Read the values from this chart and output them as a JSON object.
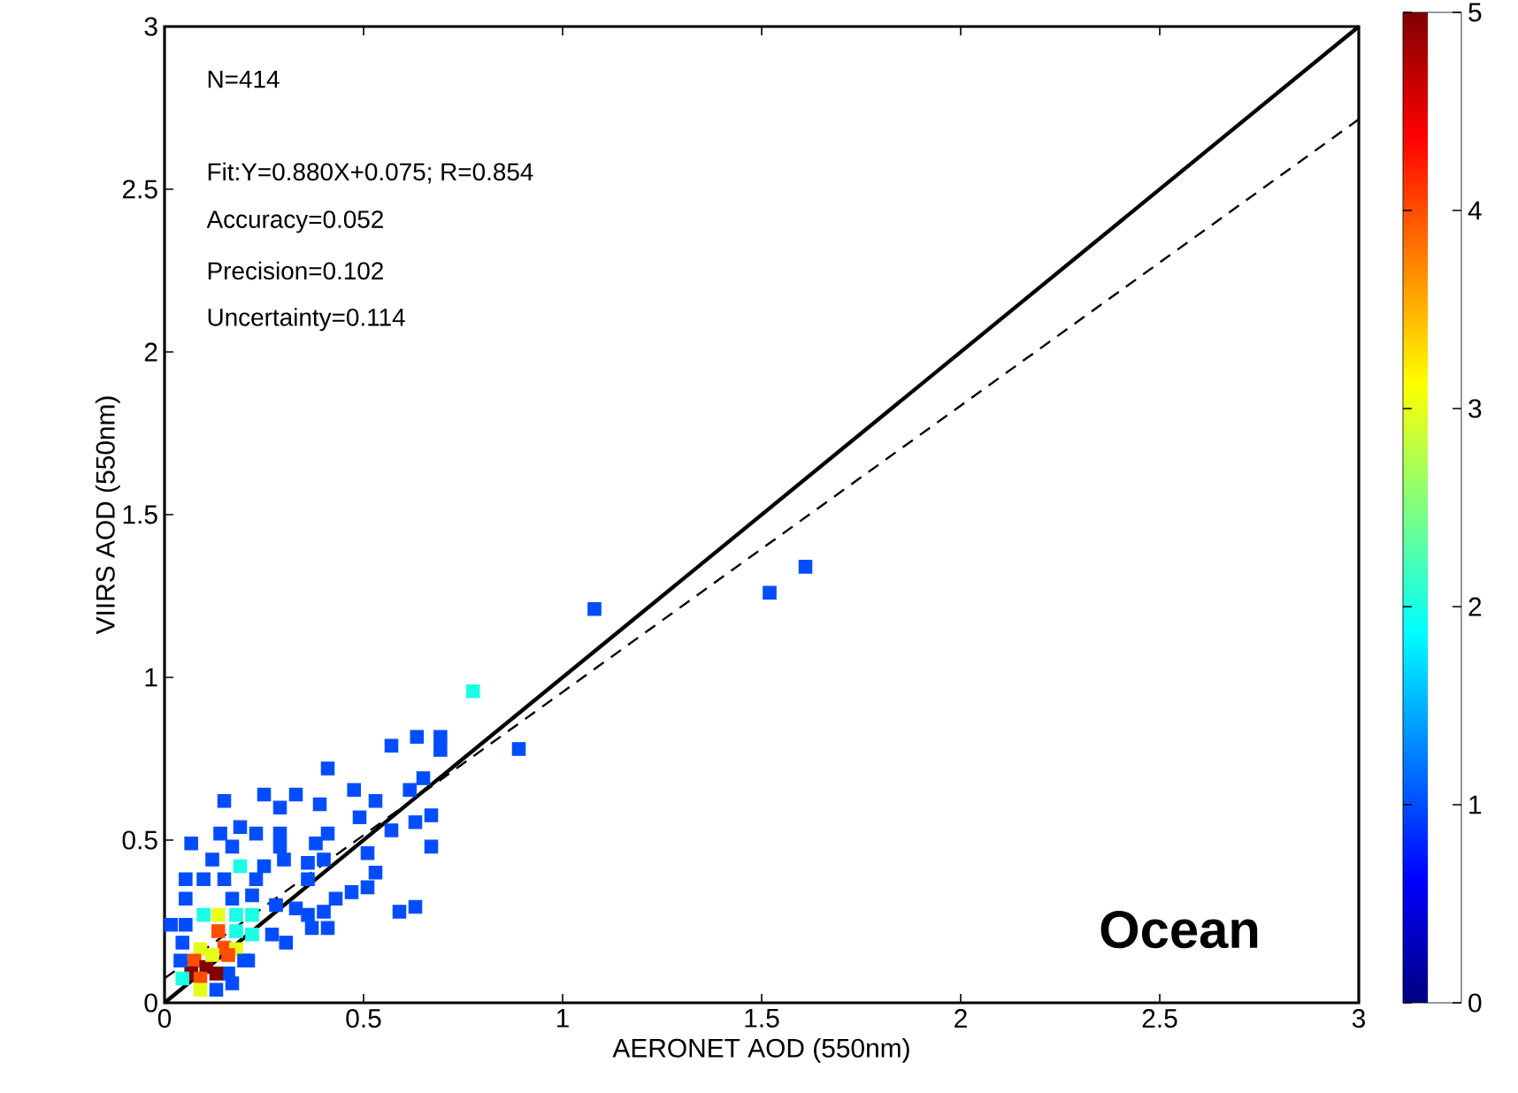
{
  "chart_data": {
    "type": "scatter",
    "xlabel": "AERONET AOD (550nm)",
    "ylabel": "VIIRS AOD (550nm)",
    "xlim": [
      0,
      3
    ],
    "ylim": [
      0,
      3
    ],
    "xticks": [
      0,
      0.5,
      1,
      1.5,
      2,
      2.5,
      3
    ],
    "yticks": [
      0,
      0.5,
      1,
      1.5,
      2,
      2.5,
      3
    ],
    "clim": [
      0,
      5
    ],
    "cticks": [
      0,
      1,
      2,
      3,
      4,
      5
    ],
    "marker": "square",
    "grid": false,
    "annotations": [
      "N=414",
      "Fit:Y=0.880X+0.075; R=0.854",
      "Accuracy=0.052",
      "Precision=0.102",
      "Uncertainty=0.114",
      "Ocean"
    ],
    "series": [
      {
        "type": "scatter",
        "x": [
          1.08,
          1.52,
          1.61,
          0.775,
          0.89,
          0.634,
          0.693,
          0.693,
          0.57,
          0.41,
          0.25,
          0.33,
          0.476,
          0.15,
          0.39,
          0.29,
          0.53,
          0.616,
          0.65,
          0.49,
          0.67,
          0.14,
          0.19,
          0.23,
          0.29,
          0.41,
          0.067,
          0.17,
          0.29,
          0.38,
          0.57,
          0.63,
          0.67,
          0.12,
          0.19,
          0.25,
          0.3,
          0.36,
          0.4,
          0.51,
          0.53,
          0.053,
          0.098,
          0.15,
          0.23,
          0.36,
          0.43,
          0.47,
          0.51,
          0.59,
          0.63,
          0.4,
          0.36,
          0.305,
          0.27,
          0.37,
          0.41,
          0.33,
          0.28,
          0.22,
          0.17,
          0.13,
          0.21,
          0.16,
          0.053,
          0.016,
          0.053,
          0.098,
          0.135,
          0.18,
          0.135,
          0.22,
          0.22,
          0.18,
          0.045,
          0.09,
          0.15,
          0.18,
          0.075,
          0.105,
          0.067,
          0.13,
          0.09,
          0.045,
          0.16,
          0.12,
          0.04,
          0.2,
          0.09,
          0.17
        ],
        "values": [
          1.21,
          1.26,
          1.34,
          0.957,
          0.78,
          0.817,
          0.817,
          0.777,
          0.79,
          0.72,
          0.64,
          0.64,
          0.654,
          0.62,
          0.61,
          0.6,
          0.62,
          0.654,
          0.69,
          0.57,
          0.576,
          0.52,
          0.54,
          0.52,
          0.52,
          0.52,
          0.49,
          0.48,
          0.48,
          0.49,
          0.53,
          0.555,
          0.48,
          0.44,
          0.42,
          0.42,
          0.44,
          0.43,
          0.44,
          0.46,
          0.4,
          0.38,
          0.38,
          0.38,
          0.38,
          0.38,
          0.32,
          0.34,
          0.355,
          0.28,
          0.295,
          0.28,
          0.27,
          0.185,
          0.21,
          0.23,
          0.23,
          0.29,
          0.3,
          0.33,
          0.32,
          0.04,
          0.13,
          0.09,
          0.32,
          0.24,
          0.24,
          0.27,
          0.27,
          0.27,
          0.22,
          0.27,
          0.21,
          0.22,
          0.185,
          0.165,
          0.17,
          0.165,
          0.13,
          0.11,
          0.09,
          0.09,
          0.075,
          0.075,
          0.147,
          0.147,
          0.13,
          0.13,
          0.04,
          0.06
        ],
        "cvalues": [
          1,
          1,
          1,
          2,
          1,
          1,
          1,
          1,
          1,
          1,
          1,
          1,
          1,
          1,
          1,
          1,
          1,
          1,
          1,
          1,
          1,
          1,
          1,
          1,
          1,
          1,
          1,
          1,
          1,
          1,
          1,
          1,
          1,
          1,
          2,
          1,
          1,
          1,
          1,
          1,
          1,
          1,
          1,
          1,
          1,
          1,
          1,
          1,
          1,
          1,
          1,
          1,
          1,
          1,
          1,
          1,
          1,
          1,
          1,
          1,
          1,
          1,
          1,
          1,
          1,
          1,
          1,
          2,
          3,
          2,
          4,
          2,
          2,
          2,
          1,
          3,
          4,
          3,
          4,
          5,
          5,
          5,
          4,
          2,
          4,
          3,
          1,
          1,
          3,
          1
        ],
        "colors": [
          "#004dff",
          "#004dff",
          "#004dff",
          "#1affe6",
          "#004dff",
          "#004dff",
          "#004dff",
          "#004dff",
          "#004dff",
          "#004dff",
          "#004dff",
          "#004dff",
          "#004dff",
          "#004dff",
          "#004dff",
          "#004dff",
          "#004dff",
          "#004dff",
          "#004dff",
          "#004dff",
          "#004dff",
          "#004dff",
          "#004dff",
          "#004dff",
          "#004dff",
          "#004dff",
          "#004dff",
          "#004dff",
          "#004dff",
          "#004dff",
          "#004dff",
          "#004dff",
          "#004dff",
          "#004dff",
          "#1affe6",
          "#004dff",
          "#004dff",
          "#004dff",
          "#004dff",
          "#004dff",
          "#004dff",
          "#004dff",
          "#004dff",
          "#004dff",
          "#004dff",
          "#004dff",
          "#004dff",
          "#004dff",
          "#004dff",
          "#004dff",
          "#004dff",
          "#004dff",
          "#004dff",
          "#004dff",
          "#004dff",
          "#004dff",
          "#004dff",
          "#004dff",
          "#004dff",
          "#004dff",
          "#004dff",
          "#004dff",
          "#004dff",
          "#004dff",
          "#004dff",
          "#004dff",
          "#004dff",
          "#1affe6",
          "#e6ff1a",
          "#1affe6",
          "#ff4d00",
          "#1affe6",
          "#1affe6",
          "#1affe6",
          "#004dff",
          "#e6ff1a",
          "#ff4d00",
          "#e6ff1a",
          "#ff4d00",
          "#800000",
          "#800000",
          "#800000",
          "#ff4d00",
          "#1affe6",
          "#ff4d00",
          "#e6ff1a",
          "#004dff",
          "#004dff",
          "#e6ff1a",
          "#004dff"
        ]
      },
      {
        "type": "line",
        "color": "#000000",
        "line_style": "solid",
        "marker": "none",
        "x": [
          0,
          3
        ],
        "values": [
          0,
          3
        ]
      },
      {
        "type": "line",
        "color": "#000000",
        "line_style": "dashed",
        "marker": "none",
        "x": [
          0,
          3
        ],
        "values": [
          0.075,
          2.715
        ]
      }
    ]
  }
}
